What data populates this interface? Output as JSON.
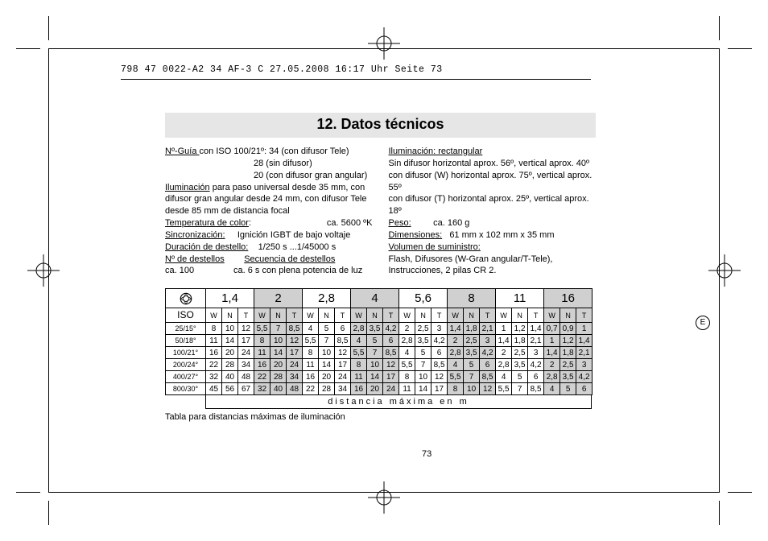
{
  "header_line": "798 47 0022-A2 34 AF-3 C  27.05.2008  16:17 Uhr  Seite 73",
  "title": "12. Datos técnicos",
  "left_col": {
    "guide_label": "Nº-Guía ",
    "guide_text": "con ISO 100/21º: 34 (con difusor Tele)",
    "guide_line2": "28 (sin difusor)",
    "guide_line3": "20 (con difusor gran angular)",
    "illum_label": "Iluminación",
    "illum_text": " para paso universal desde 35 mm, con difusor gran angular desde 24 mm, con difusor Tele desde 85 mm de distancia focal",
    "temp_label": "Temperatura de color",
    "temp_val": "ca. 5600 ºK",
    "sync_label": "Sincronización:",
    "sync_val": "Ignición IGBT de bajo voltaje",
    "dur_label": "Duración de destello:",
    "dur_val": "1/250 s ...1/45000 s",
    "num_label": "Nº de destellos",
    "seq_label": "Secuencia de destellos",
    "num_val": "ca. 100",
    "seq_val": "ca. 6 s con plena potencia de luz"
  },
  "right_col": {
    "illum_label": "Iluminación: rectangular",
    "line1": "Sin difusor horizontal aprox. 56º, vertical aprox. 40º",
    "line2": "con difusor (W) horizontal aprox. 75º, vertical aprox. 55º",
    "line3": "con difusor (T) horizontal aprox. 25º, vertical aprox. 18º",
    "weight_label": "Peso:",
    "weight_val": "ca. 160 g",
    "dim_label": "Dimensiones:",
    "dim_val": "61 mm x 102 mm x 35 mm",
    "supply_label": "Volumen de suministro:",
    "supply_text": "Flash, Difusores (W-Gran angular/T-Tele), Instrucciones, 2 pilas CR 2."
  },
  "table": {
    "iso_header": "ISO",
    "apertures": [
      "1,4",
      "2",
      "2,8",
      "4",
      "5,6",
      "8",
      "11",
      "16"
    ],
    "sub": [
      "W",
      "N",
      "T"
    ],
    "shaded_aperture_idx": [
      1,
      3,
      5,
      7
    ],
    "rows": [
      {
        "iso": "25/15°",
        "cells": [
          "8",
          "10",
          "12",
          "5,5",
          "7",
          "8,5",
          "4",
          "5",
          "6",
          "2,8",
          "3,5",
          "4,2",
          "2",
          "2,5",
          "3",
          "1,4",
          "1,8",
          "2,1",
          "1",
          "1,2",
          "1,4",
          "0,7",
          "0,9",
          "1"
        ]
      },
      {
        "iso": "50/18°",
        "cells": [
          "11",
          "14",
          "17",
          "8",
          "10",
          "12",
          "5,5",
          "7",
          "8,5",
          "4",
          "5",
          "6",
          "2,8",
          "3,5",
          "4,2",
          "2",
          "2,5",
          "3",
          "1,4",
          "1,8",
          "2,1",
          "1",
          "1,2",
          "1,4"
        ]
      },
      {
        "iso": "100/21°",
        "cells": [
          "16",
          "20",
          "24",
          "11",
          "14",
          "17",
          "8",
          "10",
          "12",
          "5,5",
          "7",
          "8,5",
          "4",
          "5",
          "6",
          "2,8",
          "3,5",
          "4,2",
          "2",
          "2,5",
          "3",
          "1,4",
          "1,8",
          "2,1"
        ]
      },
      {
        "iso": "200/24°",
        "cells": [
          "22",
          "28",
          "34",
          "16",
          "20",
          "24",
          "11",
          "14",
          "17",
          "8",
          "10",
          "12",
          "5,5",
          "7",
          "8,5",
          "4",
          "5",
          "6",
          "2,8",
          "3,5",
          "4,2",
          "2",
          "2,5",
          "3"
        ]
      },
      {
        "iso": "400/27°",
        "cells": [
          "32",
          "40",
          "48",
          "22",
          "28",
          "34",
          "16",
          "20",
          "24",
          "11",
          "14",
          "17",
          "8",
          "10",
          "12",
          "5,5",
          "7",
          "8,5",
          "4",
          "5",
          "6",
          "2,8",
          "3,5",
          "4,2"
        ]
      },
      {
        "iso": "800/30°",
        "cells": [
          "45",
          "56",
          "67",
          "32",
          "40",
          "48",
          "22",
          "28",
          "34",
          "16",
          "20",
          "24",
          "11",
          "14",
          "17",
          "8",
          "10",
          "12",
          "5,5",
          "7",
          "8,5",
          "4",
          "5",
          "6"
        ]
      }
    ],
    "footer": "distancia máxima en m"
  },
  "caption": "Tabla para distancias máximas de iluminación",
  "page_number": "73",
  "badge": "E"
}
